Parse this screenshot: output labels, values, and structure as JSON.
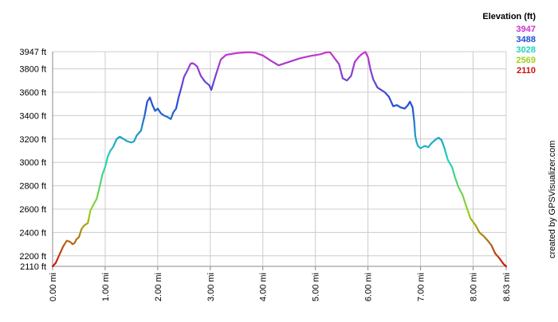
{
  "chart_data": {
    "type": "line",
    "xlabel": "",
    "ylabel": "",
    "xlim": [
      0,
      8.63
    ],
    "ylim": [
      2110,
      3947
    ],
    "grid": true,
    "credit": "created by GPSVisualizer.com",
    "legend": {
      "title": "Elevation (ft)",
      "placement": "top-right",
      "entries": [
        {
          "label": "3947",
          "color": "#cc33cc"
        },
        {
          "label": "3488",
          "color": "#1f4fd6"
        },
        {
          "label": "3028",
          "color": "#1fd3c0"
        },
        {
          "label": "2569",
          "color": "#99d21a"
        },
        {
          "label": "2110",
          "color": "#cc1111"
        }
      ]
    },
    "y_ticks": [
      {
        "value": 2110,
        "label": "2110 ft"
      },
      {
        "value": 2200,
        "label": "2200 ft"
      },
      {
        "value": 2400,
        "label": "2400 ft"
      },
      {
        "value": 2600,
        "label": "2600 ft"
      },
      {
        "value": 2800,
        "label": "2800 ft"
      },
      {
        "value": 3000,
        "label": "3000 ft"
      },
      {
        "value": 3200,
        "label": "3200 ft"
      },
      {
        "value": 3400,
        "label": "3400 ft"
      },
      {
        "value": 3600,
        "label": "3600 ft"
      },
      {
        "value": 3800,
        "label": "3800 ft"
      },
      {
        "value": 3947,
        "label": "3947 ft"
      }
    ],
    "x_ticks": [
      {
        "value": 0,
        "label": "0.00 mi"
      },
      {
        "value": 1,
        "label": "1.00 mi"
      },
      {
        "value": 2,
        "label": "2.00 mi"
      },
      {
        "value": 3,
        "label": "3.00 mi"
      },
      {
        "value": 4,
        "label": "4.00 mi"
      },
      {
        "value": 5,
        "label": "5.00 mi"
      },
      {
        "value": 6,
        "label": "6.00 mi"
      },
      {
        "value": 7,
        "label": "7.00 mi"
      },
      {
        "value": 8,
        "label": "8.00 mi"
      },
      {
        "value": 8.63,
        "label": "8.63 mi"
      }
    ],
    "series": [
      {
        "x": [
          0,
          0.06,
          0.12,
          0.2,
          0.27,
          0.33,
          0.38,
          0.42,
          0.45,
          0.5,
          0.55,
          0.6,
          0.67,
          0.72,
          0.78,
          0.84,
          0.9,
          0.95,
          1.0,
          1.05,
          1.1,
          1.15,
          1.22,
          1.28,
          1.35,
          1.42,
          1.5,
          1.55,
          1.6,
          1.68,
          1.75,
          1.8,
          1.85,
          1.9,
          1.95,
          2.0,
          2.06,
          2.12,
          2.18,
          2.25,
          2.3,
          2.35,
          2.4,
          2.45,
          2.5,
          2.58,
          2.62,
          2.65,
          2.7,
          2.75,
          2.82,
          2.9,
          2.98,
          3.02,
          3.1,
          3.2,
          3.3,
          3.5,
          3.65,
          3.75,
          3.85,
          4.0,
          4.15,
          4.3,
          4.5,
          4.7,
          4.9,
          5.1,
          5.2,
          5.28,
          5.35,
          5.45,
          5.52,
          5.6,
          5.68,
          5.75,
          5.82,
          5.88,
          5.95,
          6.0,
          6.05,
          6.1,
          6.18,
          6.25,
          6.32,
          6.4,
          6.48,
          6.55,
          6.62,
          6.7,
          6.76,
          6.8,
          6.85,
          6.88,
          6.9,
          6.92,
          6.95,
          7.0,
          7.08,
          7.15,
          7.2,
          7.25,
          7.3,
          7.35,
          7.4,
          7.45,
          7.52,
          7.6,
          7.65,
          7.72,
          7.8,
          7.88,
          7.95,
          8.05,
          8.12,
          8.2,
          8.28,
          8.35,
          8.42,
          8.5,
          8.58,
          8.63
        ],
        "y": [
          2110,
          2140,
          2200,
          2280,
          2330,
          2320,
          2300,
          2310,
          2340,
          2360,
          2430,
          2460,
          2480,
          2590,
          2640,
          2690,
          2800,
          2900,
          2960,
          3050,
          3100,
          3130,
          3200,
          3220,
          3200,
          3180,
          3170,
          3180,
          3230,
          3270,
          3400,
          3520,
          3555,
          3490,
          3440,
          3460,
          3420,
          3400,
          3390,
          3370,
          3430,
          3460,
          3560,
          3640,
          3730,
          3800,
          3840,
          3850,
          3840,
          3820,
          3740,
          3690,
          3660,
          3620,
          3740,
          3880,
          3920,
          3935,
          3940,
          3942,
          3938,
          3915,
          3870,
          3830,
          3860,
          3890,
          3910,
          3925,
          3940,
          3942,
          3900,
          3840,
          3720,
          3700,
          3740,
          3860,
          3900,
          3925,
          3945,
          3900,
          3790,
          3710,
          3640,
          3620,
          3600,
          3560,
          3480,
          3490,
          3470,
          3460,
          3490,
          3520,
          3470,
          3350,
          3230,
          3180,
          3140,
          3120,
          3140,
          3130,
          3160,
          3180,
          3200,
          3210,
          3190,
          3130,
          3020,
          2960,
          2880,
          2790,
          2720,
          2610,
          2520,
          2460,
          2400,
          2370,
          2330,
          2290,
          2220,
          2180,
          2130,
          2110
        ]
      }
    ]
  }
}
